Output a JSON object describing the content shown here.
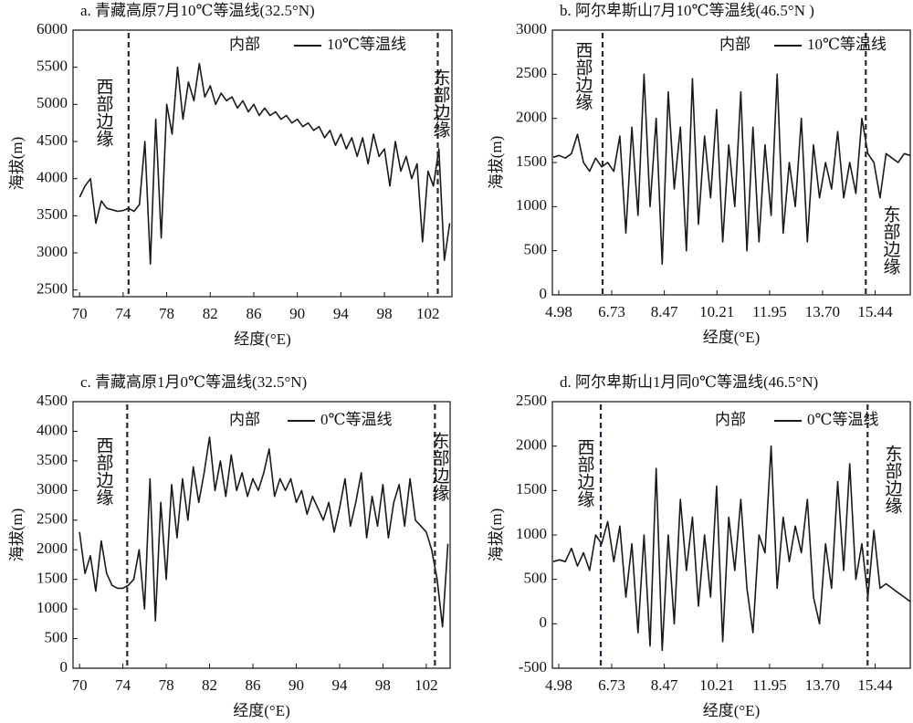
{
  "chart_data": [
    {
      "type": "line",
      "title": "a. 青藏高原7月10℃等温线(32.5°N)",
      "xlabel": "经度(°E)",
      "ylabel": "海拔(m)",
      "x": [
        70,
        70.5,
        71,
        71.5,
        72,
        72.5,
        73,
        73.5,
        74,
        74.5,
        75,
        75.5,
        76,
        76.5,
        77,
        77.5,
        78,
        78.5,
        79,
        79.5,
        80,
        80.5,
        81,
        81.5,
        82,
        82.5,
        83,
        83.5,
        84,
        84.5,
        85,
        85.5,
        86,
        86.5,
        87,
        87.5,
        88,
        88.5,
        89,
        89.5,
        90,
        90.5,
        91,
        91.5,
        92,
        92.5,
        93,
        93.5,
        94,
        94.5,
        95,
        95.5,
        96,
        96.5,
        97,
        97.5,
        98,
        98.5,
        99,
        99.5,
        100,
        100.5,
        101,
        101.5,
        102,
        102.5,
        103,
        103.5,
        104
      ],
      "series": [
        {
          "name": "10℃等温线",
          "color": "#1a1a1a",
          "values": [
            3750,
            3900,
            4000,
            3400,
            3700,
            3600,
            3580,
            3560,
            3570,
            3600,
            3560,
            3650,
            4500,
            2850,
            4800,
            3200,
            5000,
            4600,
            5500,
            4800,
            5300,
            5050,
            5550,
            5100,
            5250,
            5000,
            5150,
            5050,
            5100,
            4950,
            5050,
            4900,
            5000,
            4850,
            4950,
            4850,
            4900,
            4800,
            4850,
            4750,
            4800,
            4700,
            4750,
            4650,
            4700,
            4550,
            4650,
            4450,
            4600,
            4400,
            4550,
            4300,
            4550,
            4200,
            4600,
            4300,
            4400,
            3900,
            4500,
            4100,
            4300,
            4000,
            4200,
            3150,
            4100,
            3900,
            4400,
            2900,
            3400
          ]
        }
      ],
      "xlim": [
        69.4,
        104.2
      ],
      "ylim": [
        2410,
        6000
      ],
      "xticks": [
        70,
        74,
        78,
        82,
        86,
        90,
        94,
        98,
        102
      ],
      "yticks": [
        2500,
        3000,
        3500,
        4000,
        4500,
        5000,
        5500,
        6000
      ],
      "boundaries": [
        74.5,
        102.9
      ],
      "annotations": [
        "西部边缘",
        "东部边缘",
        "内部"
      ]
    },
    {
      "type": "line",
      "title": "b. 阿尔卑斯山7月10℃等温线(46.5°N )",
      "xlabel": "经度(°E)",
      "ylabel": "海拔(m)",
      "x": [
        4.8,
        5.0,
        5.2,
        5.4,
        5.6,
        5.8,
        6.0,
        6.2,
        6.4,
        6.6,
        6.8,
        7.0,
        7.2,
        7.4,
        7.6,
        7.8,
        8.0,
        8.2,
        8.4,
        8.6,
        8.8,
        9.0,
        9.2,
        9.4,
        9.6,
        9.8,
        10.0,
        10.2,
        10.4,
        10.6,
        10.8,
        11.0,
        11.2,
        11.4,
        11.6,
        11.8,
        12.0,
        12.2,
        12.4,
        12.6,
        12.8,
        13.0,
        13.2,
        13.4,
        13.6,
        13.8,
        14.0,
        14.2,
        14.4,
        14.6,
        14.8,
        15.0,
        15.2,
        15.4,
        15.6,
        15.8,
        16.0,
        16.2,
        16.4,
        16.6
      ],
      "series": [
        {
          "name": "10℃等温线",
          "color": "#1a1a1a",
          "values": [
            1560,
            1580,
            1550,
            1600,
            1820,
            1500,
            1400,
            1550,
            1450,
            1500,
            1400,
            1800,
            700,
            1900,
            900,
            2500,
            1000,
            2000,
            350,
            2300,
            1200,
            1900,
            500,
            2450,
            800,
            1800,
            1100,
            2100,
            600,
            1700,
            1000,
            2300,
            500,
            1900,
            600,
            1700,
            900,
            2500,
            700,
            1500,
            1000,
            2000,
            600,
            1700,
            1100,
            1500,
            1200,
            1850,
            1100,
            1500,
            1150,
            2000,
            1600,
            1500,
            1100,
            1600,
            1550,
            1500,
            1600,
            1580
          ]
        }
      ],
      "xlim": [
        4.77,
        16.6
      ],
      "ylim": [
        0,
        3000
      ],
      "xticks": [
        4.98,
        6.73,
        8.47,
        10.21,
        11.95,
        {
          "value": 13.7,
          "label": "13.70"
        },
        15.44
      ],
      "yticks": [
        0,
        500,
        1000,
        1500,
        2000,
        2500,
        3000
      ],
      "boundaries": [
        6.43,
        15.13
      ],
      "annotations": [
        "西部边缘",
        "东部边缘",
        "内部"
      ]
    },
    {
      "type": "line",
      "title": "c. 青藏高原1月0℃等温线(32.5°N)",
      "xlabel": "经度(°E)",
      "ylabel": "海拔(m)",
      "x": [
        70,
        70.5,
        71,
        71.5,
        72,
        72.5,
        73,
        73.5,
        74,
        74.5,
        75,
        75.5,
        76,
        76.5,
        77,
        77.5,
        78,
        78.5,
        79,
        79.5,
        80,
        80.5,
        81,
        81.5,
        82,
        82.5,
        83,
        83.5,
        84,
        84.5,
        85,
        85.5,
        86,
        86.5,
        87,
        87.5,
        88,
        88.5,
        89,
        89.5,
        90,
        90.5,
        91,
        91.5,
        92,
        92.5,
        93,
        93.5,
        94,
        94.5,
        95,
        95.5,
        96,
        96.5,
        97,
        97.5,
        98,
        98.5,
        99,
        99.5,
        100,
        100.5,
        101,
        101.5,
        102,
        102.5,
        103,
        103.5,
        104
      ],
      "series": [
        {
          "name": "0℃等温线",
          "color": "#1a1a1a",
          "values": [
            2300,
            1600,
            1900,
            1300,
            2150,
            1600,
            1400,
            1350,
            1350,
            1400,
            1500,
            2000,
            1000,
            3200,
            800,
            2800,
            1500,
            3100,
            2200,
            3200,
            2500,
            3400,
            2800,
            3300,
            3900,
            3000,
            3500,
            2900,
            3600,
            3000,
            3300,
            2900,
            3200,
            3000,
            3300,
            3700,
            2900,
            3200,
            3000,
            3200,
            2800,
            3000,
            2600,
            2900,
            2700,
            2500,
            2800,
            2300,
            2700,
            3200,
            2400,
            2800,
            3300,
            2200,
            2900,
            2400,
            3100,
            2200,
            2800,
            3100,
            2400,
            3200,
            2500,
            2400,
            2300,
            2000,
            1500,
            700,
            2100
          ]
        }
      ],
      "xlim": [
        69.4,
        104.2
      ],
      "ylim": [
        0,
        4500
      ],
      "xticks": [
        70,
        74,
        78,
        82,
        86,
        90,
        94,
        98,
        102
      ],
      "yticks": [
        0,
        500,
        1000,
        1500,
        2000,
        2500,
        3000,
        3500,
        4000,
        4500
      ],
      "boundaries": [
        74.4,
        102.8
      ],
      "annotations": [
        "西部边缘",
        "东部边缘",
        "内部"
      ]
    },
    {
      "type": "line",
      "title": "d. 阿尔卑斯山1月同0℃等温线(46.5°N)",
      "xlabel": "经度(°E)",
      "ylabel": "海拔(m)",
      "x": [
        4.8,
        5.0,
        5.2,
        5.4,
        5.6,
        5.8,
        6.0,
        6.2,
        6.4,
        6.6,
        6.8,
        7.0,
        7.2,
        7.4,
        7.6,
        7.8,
        8.0,
        8.2,
        8.4,
        8.6,
        8.8,
        9.0,
        9.2,
        9.4,
        9.6,
        9.8,
        10.0,
        10.2,
        10.4,
        10.6,
        10.8,
        11.0,
        11.2,
        11.4,
        11.6,
        11.8,
        12.0,
        12.2,
        12.4,
        12.6,
        12.8,
        13.0,
        13.2,
        13.4,
        13.6,
        13.8,
        14.0,
        14.2,
        14.4,
        14.6,
        14.8,
        15.0,
        15.2,
        15.4,
        15.6,
        15.8,
        16.0,
        16.2,
        16.4,
        16.6
      ],
      "series": [
        {
          "name": "0℃等温线",
          "color": "#1a1a1a",
          "values": [
            700,
            720,
            700,
            850,
            650,
            800,
            600,
            1000,
            900,
            1150,
            700,
            1100,
            300,
            900,
            -100,
            1000,
            -250,
            1750,
            -300,
            1000,
            0,
            1400,
            600,
            1200,
            200,
            1000,
            300,
            1550,
            -200,
            1200,
            600,
            1400,
            400,
            -100,
            1000,
            800,
            2000,
            400,
            1200,
            700,
            1100,
            800,
            1400,
            300,
            0,
            900,
            400,
            1600,
            600,
            1800,
            500,
            900,
            300,
            1050,
            400,
            450,
            400,
            350,
            300,
            250
          ]
        }
      ],
      "xlim": [
        4.77,
        16.6
      ],
      "ylim": [
        -500,
        2500
      ],
      "xticks": [
        4.98,
        6.73,
        8.47,
        10.21,
        11.95,
        {
          "value": 13.7,
          "label": "13.70"
        },
        15.44
      ],
      "yticks": [
        -500,
        0,
        500,
        1000,
        1500,
        2000,
        2500
      ],
      "boundaries": [
        6.37,
        15.19
      ],
      "annotations": [
        "西部边缘",
        "东部边缘",
        "内部"
      ]
    }
  ]
}
